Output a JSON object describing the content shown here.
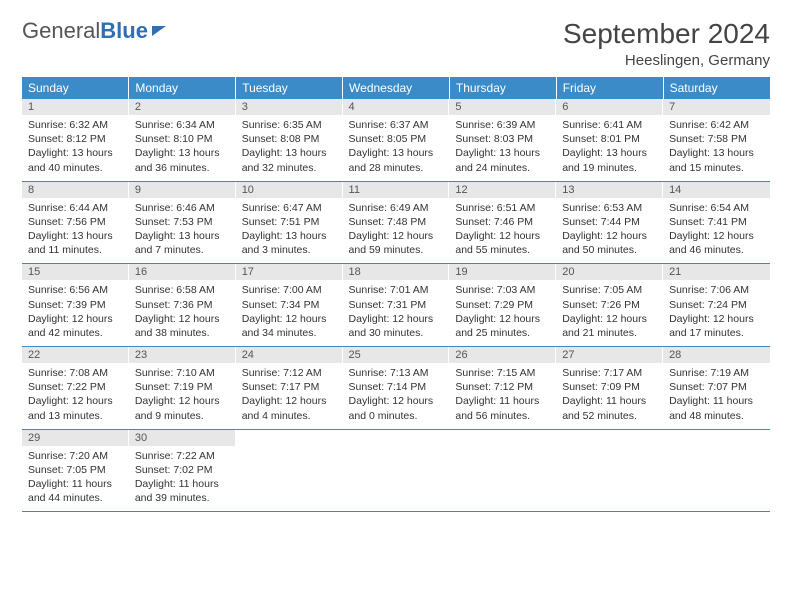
{
  "logo": {
    "general": "General",
    "blue": "Blue"
  },
  "header": {
    "month_title": "September 2024",
    "location": "Heeslingen, Germany"
  },
  "colors": {
    "header_bg": "#3b8bc9",
    "header_text": "#ffffff",
    "daynum_bg": "#e7e7e7",
    "border": "#3b8bc9"
  },
  "day_labels": [
    "Sunday",
    "Monday",
    "Tuesday",
    "Wednesday",
    "Thursday",
    "Friday",
    "Saturday"
  ],
  "weeks": [
    [
      {
        "n": "1",
        "sr": "Sunrise: 6:32 AM",
        "ss": "Sunset: 8:12 PM",
        "dl": "Daylight: 13 hours and 40 minutes."
      },
      {
        "n": "2",
        "sr": "Sunrise: 6:34 AM",
        "ss": "Sunset: 8:10 PM",
        "dl": "Daylight: 13 hours and 36 minutes."
      },
      {
        "n": "3",
        "sr": "Sunrise: 6:35 AM",
        "ss": "Sunset: 8:08 PM",
        "dl": "Daylight: 13 hours and 32 minutes."
      },
      {
        "n": "4",
        "sr": "Sunrise: 6:37 AM",
        "ss": "Sunset: 8:05 PM",
        "dl": "Daylight: 13 hours and 28 minutes."
      },
      {
        "n": "5",
        "sr": "Sunrise: 6:39 AM",
        "ss": "Sunset: 8:03 PM",
        "dl": "Daylight: 13 hours and 24 minutes."
      },
      {
        "n": "6",
        "sr": "Sunrise: 6:41 AM",
        "ss": "Sunset: 8:01 PM",
        "dl": "Daylight: 13 hours and 19 minutes."
      },
      {
        "n": "7",
        "sr": "Sunrise: 6:42 AM",
        "ss": "Sunset: 7:58 PM",
        "dl": "Daylight: 13 hours and 15 minutes."
      }
    ],
    [
      {
        "n": "8",
        "sr": "Sunrise: 6:44 AM",
        "ss": "Sunset: 7:56 PM",
        "dl": "Daylight: 13 hours and 11 minutes."
      },
      {
        "n": "9",
        "sr": "Sunrise: 6:46 AM",
        "ss": "Sunset: 7:53 PM",
        "dl": "Daylight: 13 hours and 7 minutes."
      },
      {
        "n": "10",
        "sr": "Sunrise: 6:47 AM",
        "ss": "Sunset: 7:51 PM",
        "dl": "Daylight: 13 hours and 3 minutes."
      },
      {
        "n": "11",
        "sr": "Sunrise: 6:49 AM",
        "ss": "Sunset: 7:48 PM",
        "dl": "Daylight: 12 hours and 59 minutes."
      },
      {
        "n": "12",
        "sr": "Sunrise: 6:51 AM",
        "ss": "Sunset: 7:46 PM",
        "dl": "Daylight: 12 hours and 55 minutes."
      },
      {
        "n": "13",
        "sr": "Sunrise: 6:53 AM",
        "ss": "Sunset: 7:44 PM",
        "dl": "Daylight: 12 hours and 50 minutes."
      },
      {
        "n": "14",
        "sr": "Sunrise: 6:54 AM",
        "ss": "Sunset: 7:41 PM",
        "dl": "Daylight: 12 hours and 46 minutes."
      }
    ],
    [
      {
        "n": "15",
        "sr": "Sunrise: 6:56 AM",
        "ss": "Sunset: 7:39 PM",
        "dl": "Daylight: 12 hours and 42 minutes."
      },
      {
        "n": "16",
        "sr": "Sunrise: 6:58 AM",
        "ss": "Sunset: 7:36 PM",
        "dl": "Daylight: 12 hours and 38 minutes."
      },
      {
        "n": "17",
        "sr": "Sunrise: 7:00 AM",
        "ss": "Sunset: 7:34 PM",
        "dl": "Daylight: 12 hours and 34 minutes."
      },
      {
        "n": "18",
        "sr": "Sunrise: 7:01 AM",
        "ss": "Sunset: 7:31 PM",
        "dl": "Daylight: 12 hours and 30 minutes."
      },
      {
        "n": "19",
        "sr": "Sunrise: 7:03 AM",
        "ss": "Sunset: 7:29 PM",
        "dl": "Daylight: 12 hours and 25 minutes."
      },
      {
        "n": "20",
        "sr": "Sunrise: 7:05 AM",
        "ss": "Sunset: 7:26 PM",
        "dl": "Daylight: 12 hours and 21 minutes."
      },
      {
        "n": "21",
        "sr": "Sunrise: 7:06 AM",
        "ss": "Sunset: 7:24 PM",
        "dl": "Daylight: 12 hours and 17 minutes."
      }
    ],
    [
      {
        "n": "22",
        "sr": "Sunrise: 7:08 AM",
        "ss": "Sunset: 7:22 PM",
        "dl": "Daylight: 12 hours and 13 minutes."
      },
      {
        "n": "23",
        "sr": "Sunrise: 7:10 AM",
        "ss": "Sunset: 7:19 PM",
        "dl": "Daylight: 12 hours and 9 minutes."
      },
      {
        "n": "24",
        "sr": "Sunrise: 7:12 AM",
        "ss": "Sunset: 7:17 PM",
        "dl": "Daylight: 12 hours and 4 minutes."
      },
      {
        "n": "25",
        "sr": "Sunrise: 7:13 AM",
        "ss": "Sunset: 7:14 PM",
        "dl": "Daylight: 12 hours and 0 minutes."
      },
      {
        "n": "26",
        "sr": "Sunrise: 7:15 AM",
        "ss": "Sunset: 7:12 PM",
        "dl": "Daylight: 11 hours and 56 minutes."
      },
      {
        "n": "27",
        "sr": "Sunrise: 7:17 AM",
        "ss": "Sunset: 7:09 PM",
        "dl": "Daylight: 11 hours and 52 minutes."
      },
      {
        "n": "28",
        "sr": "Sunrise: 7:19 AM",
        "ss": "Sunset: 7:07 PM",
        "dl": "Daylight: 11 hours and 48 minutes."
      }
    ],
    [
      {
        "n": "29",
        "sr": "Sunrise: 7:20 AM",
        "ss": "Sunset: 7:05 PM",
        "dl": "Daylight: 11 hours and 44 minutes."
      },
      {
        "n": "30",
        "sr": "Sunrise: 7:22 AM",
        "ss": "Sunset: 7:02 PM",
        "dl": "Daylight: 11 hours and 39 minutes."
      },
      {
        "empty": true
      },
      {
        "empty": true
      },
      {
        "empty": true
      },
      {
        "empty": true
      },
      {
        "empty": true
      }
    ]
  ]
}
